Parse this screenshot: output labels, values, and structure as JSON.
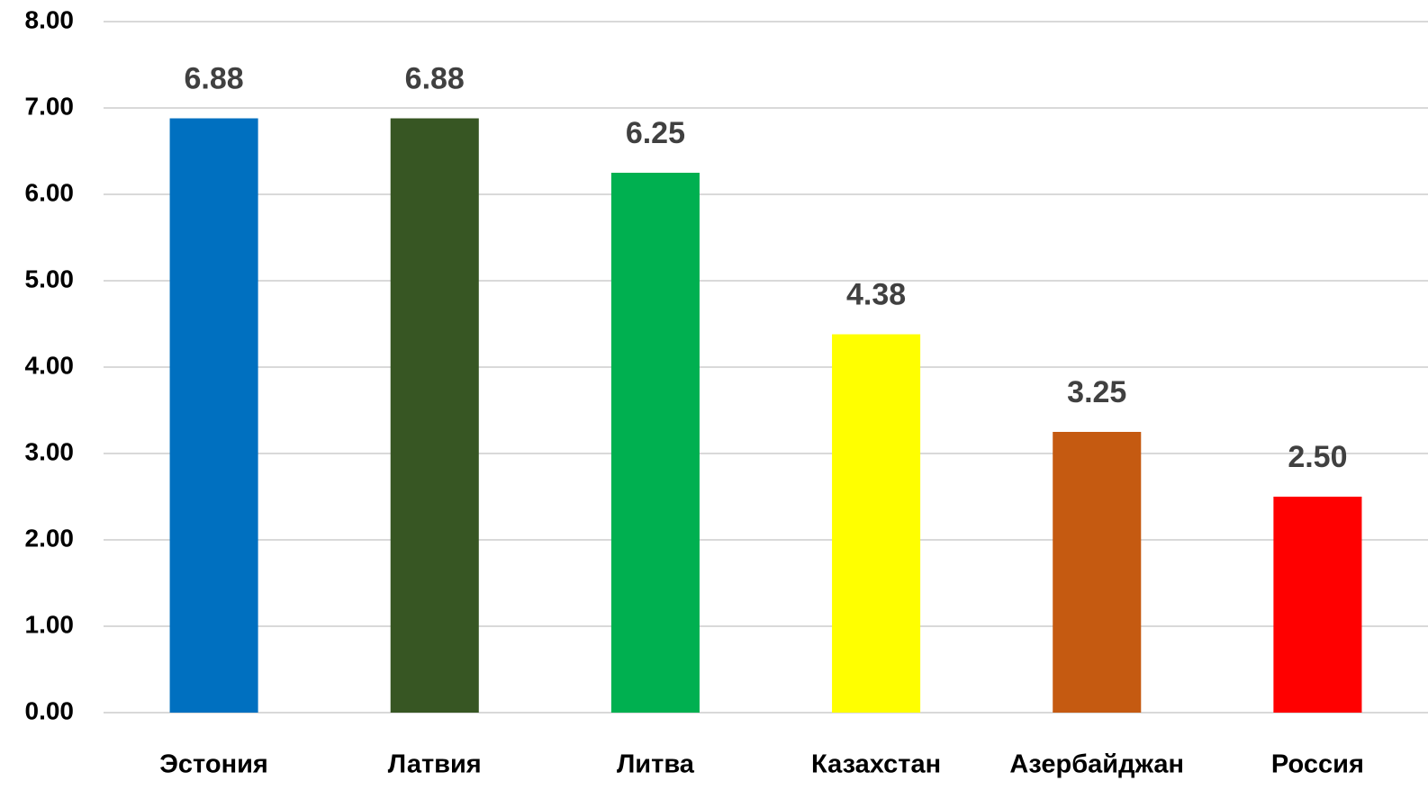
{
  "chart_data": {
    "type": "bar",
    "categories": [
      "Эстония",
      "Латвия",
      "Литва",
      "Казахстан",
      "Азербайджан",
      "Россия"
    ],
    "values": [
      6.88,
      6.88,
      6.25,
      4.38,
      3.25,
      2.5
    ],
    "value_labels": [
      "6.88",
      "6.88",
      "6.25",
      "4.38",
      "3.25",
      "2.50"
    ],
    "colors": [
      "#0070c0",
      "#375623",
      "#00b050",
      "#ffff00",
      "#c55a11",
      "#ff0000"
    ],
    "ylim": [
      0,
      8
    ],
    "yticks": [
      {
        "value": 0,
        "label": "0.00"
      },
      {
        "value": 1,
        "label": "1.00"
      },
      {
        "value": 2,
        "label": "2.00"
      },
      {
        "value": 3,
        "label": "3.00"
      },
      {
        "value": 4,
        "label": "4.00"
      },
      {
        "value": 5,
        "label": "5.00"
      },
      {
        "value": 6,
        "label": "6.00"
      },
      {
        "value": 7,
        "label": "7.00"
      },
      {
        "value": 8,
        "label": "8.00"
      }
    ],
    "grid": true
  }
}
